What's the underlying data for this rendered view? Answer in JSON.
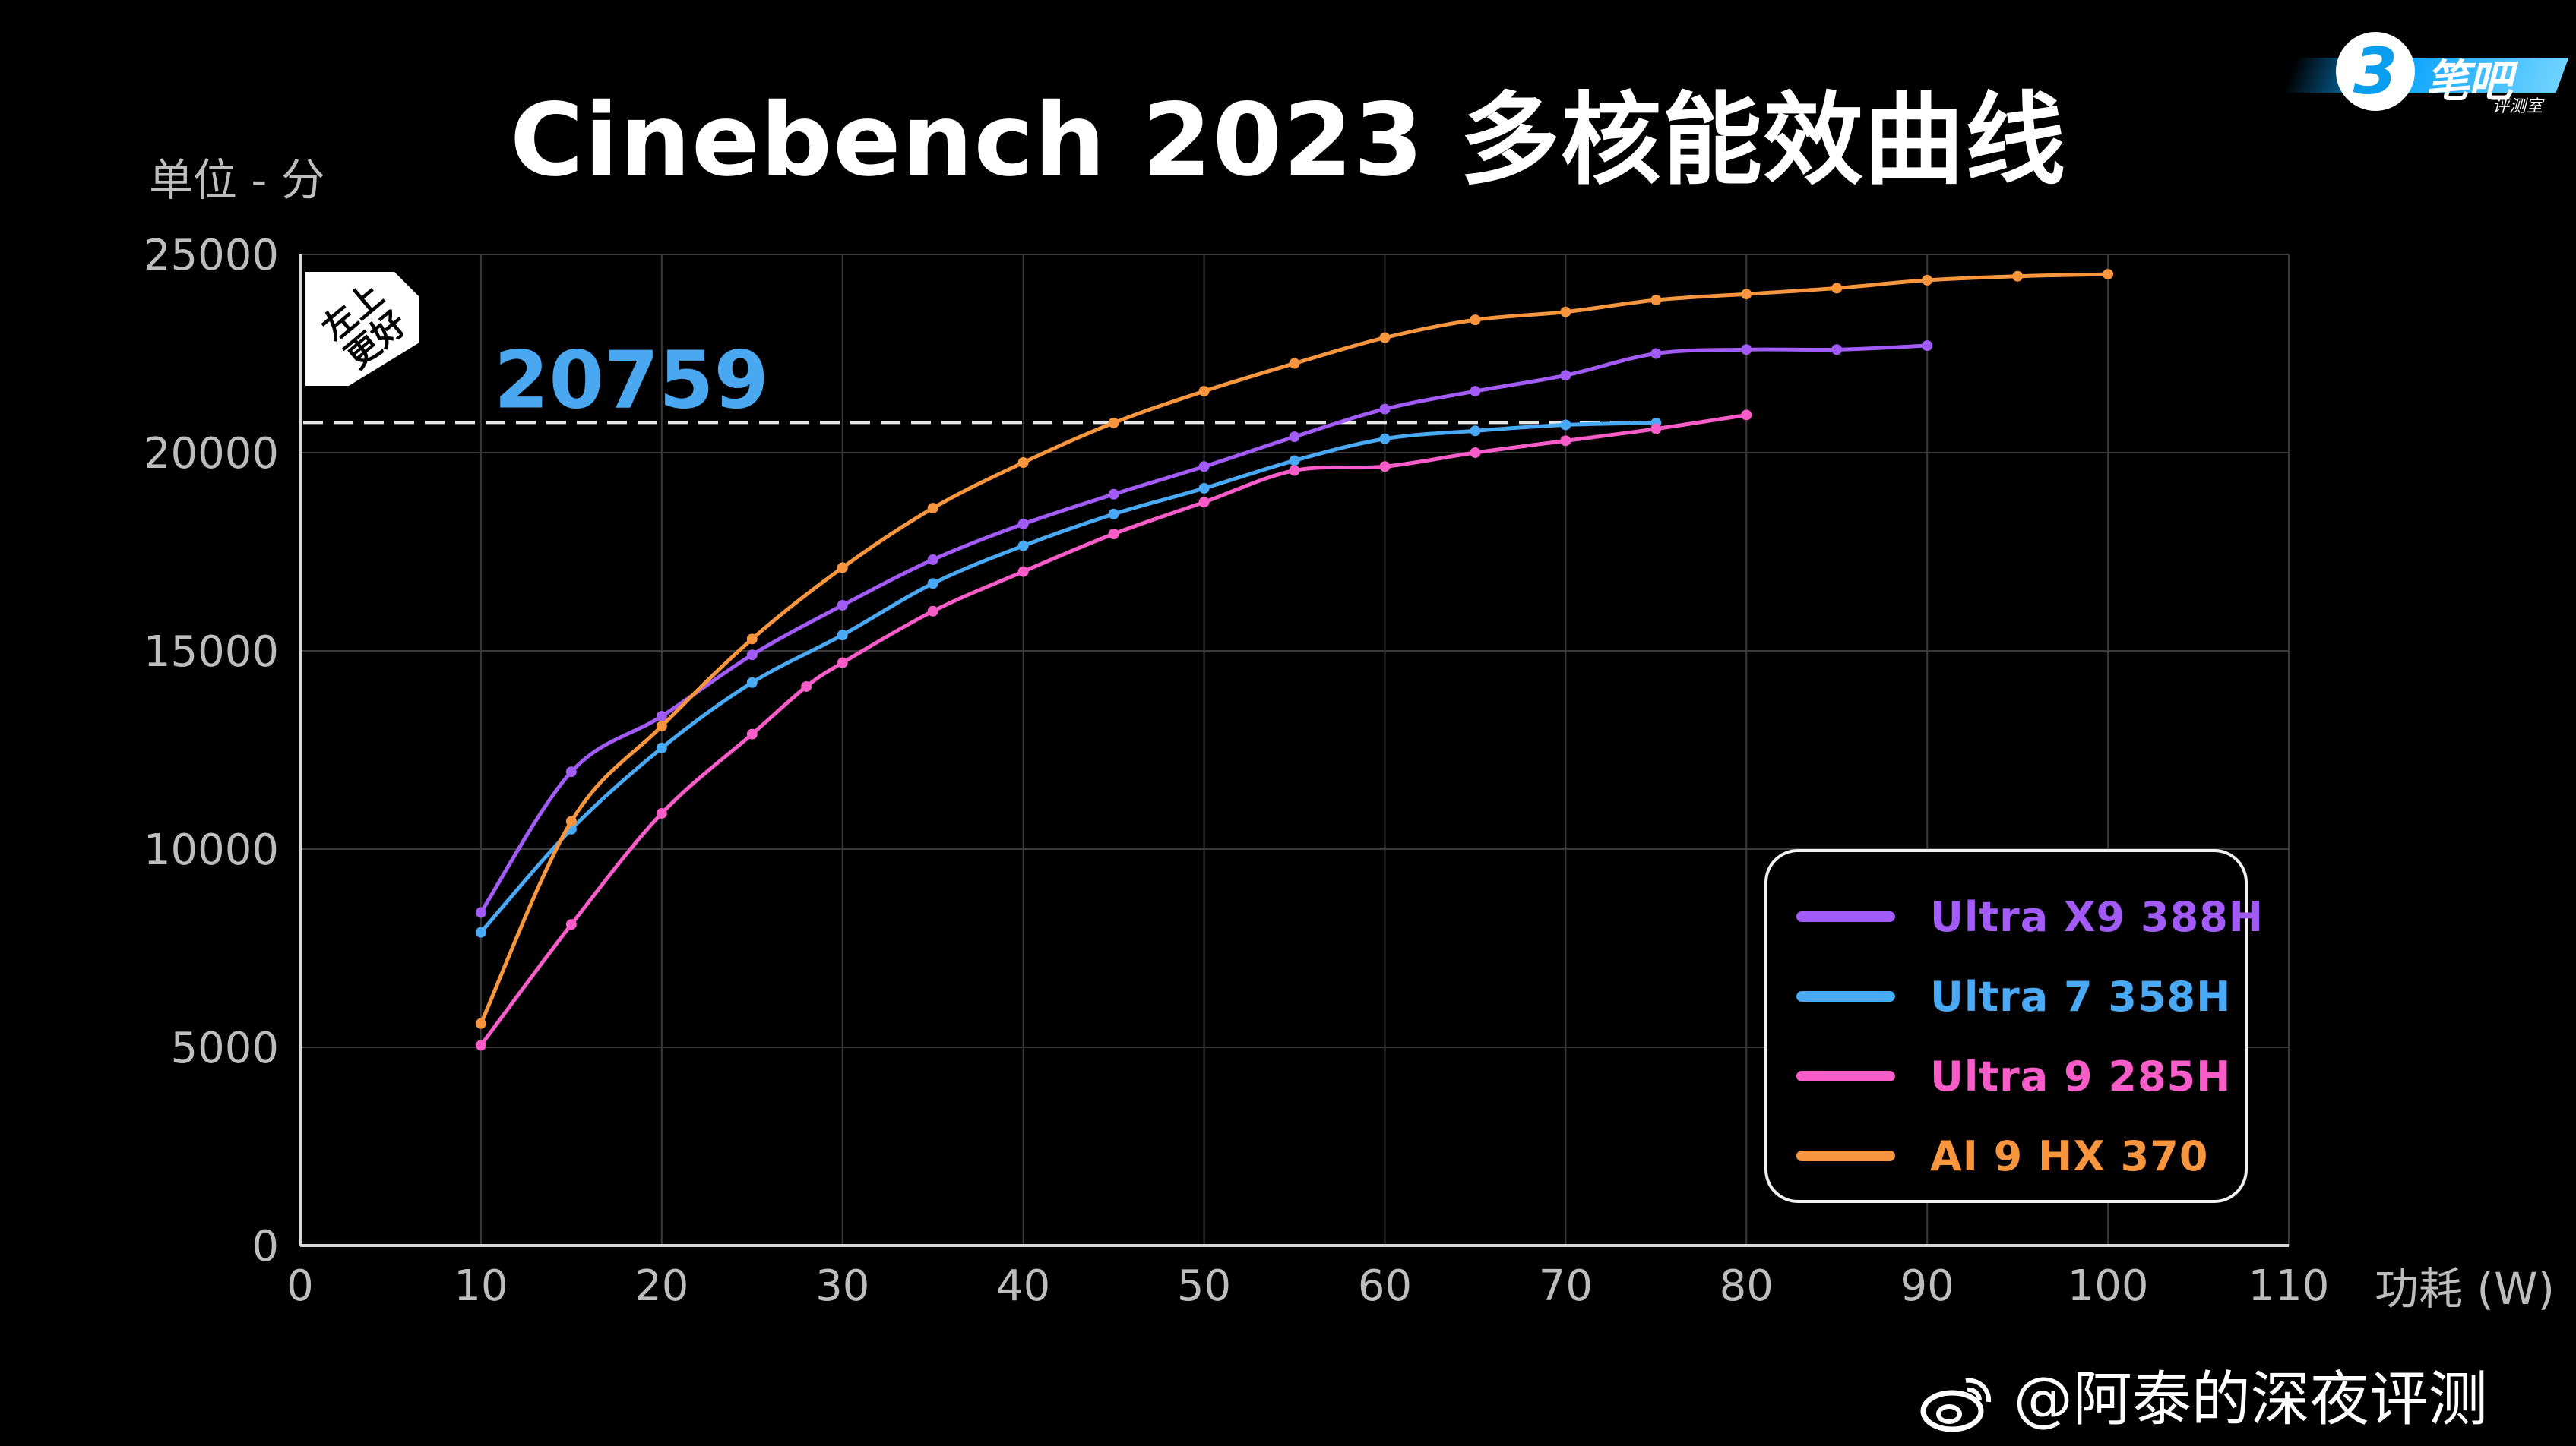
{
  "title": "Cinebench 2023 多核能效曲线",
  "brand": {
    "badge_text": "3",
    "name": "笔吧",
    "sub": "评测室"
  },
  "annotation": {
    "badge_text": "左上更好",
    "badge_line1": "左上",
    "badge_line2": "更好",
    "reference_label": "20759"
  },
  "watermark": "@阿泰的深夜评测",
  "colors": {
    "purple": "#a35bf7",
    "blue": "#49a9f5",
    "pink": "#f75cc9",
    "orange": "#f8963f",
    "reference_text": "#4aa8f0"
  },
  "chart_data": {
    "type": "line",
    "title": "Cinebench 2023 多核能效曲线",
    "xlabel": "功耗 (W)",
    "ylabel": "单位 - 分",
    "xlim": [
      0,
      110
    ],
    "ylim": [
      0,
      25000
    ],
    "xticks": [
      0,
      10,
      20,
      30,
      40,
      50,
      60,
      70,
      80,
      90,
      100,
      110
    ],
    "yticks": [
      0,
      5000,
      10000,
      15000,
      20000,
      25000
    ],
    "grid": true,
    "legend_position": "bottom-right",
    "reference_line": {
      "y": 20759,
      "label": "20759",
      "x_end": 75
    },
    "series": [
      {
        "name": "Ultra X9 388H",
        "color": "#a35bf7",
        "x": [
          10,
          15,
          20,
          25,
          30,
          35,
          40,
          45,
          50,
          55,
          60,
          65,
          70,
          75,
          80,
          85,
          90
        ],
        "y": [
          8400,
          11950,
          13350,
          14900,
          16150,
          17300,
          18200,
          18950,
          19650,
          20400,
          21100,
          21550,
          21950,
          22500,
          22600,
          22600,
          22700
        ]
      },
      {
        "name": "Ultra 7 358H",
        "color": "#49a9f5",
        "x": [
          10,
          15,
          20,
          25,
          30,
          35,
          40,
          45,
          50,
          55,
          60,
          65,
          70,
          75
        ],
        "y": [
          7900,
          10500,
          12550,
          14200,
          15400,
          16700,
          17650,
          18450,
          19100,
          19800,
          20350,
          20550,
          20700,
          20750
        ]
      },
      {
        "name": "Ultra 9 285H",
        "color": "#f75cc9",
        "x": [
          10,
          15,
          20,
          25,
          28,
          30,
          35,
          40,
          45,
          50,
          55,
          60,
          65,
          70,
          75,
          80
        ],
        "y": [
          5050,
          8100,
          10900,
          12900,
          14100,
          14700,
          16000,
          17000,
          17950,
          18750,
          19550,
          19650,
          20000,
          20300,
          20600,
          20950
        ]
      },
      {
        "name": "AI 9 HX 370",
        "color": "#f8963f",
        "x": [
          10,
          15,
          20,
          25,
          30,
          35,
          40,
          45,
          50,
          55,
          60,
          65,
          70,
          75,
          80,
          85,
          90,
          95,
          100
        ],
        "y": [
          5600,
          10700,
          13100,
          15300,
          17100,
          18600,
          19750,
          20750,
          21550,
          22250,
          22900,
          23350,
          23550,
          23850,
          24000,
          24150,
          24350,
          24450,
          24500
        ]
      }
    ]
  }
}
